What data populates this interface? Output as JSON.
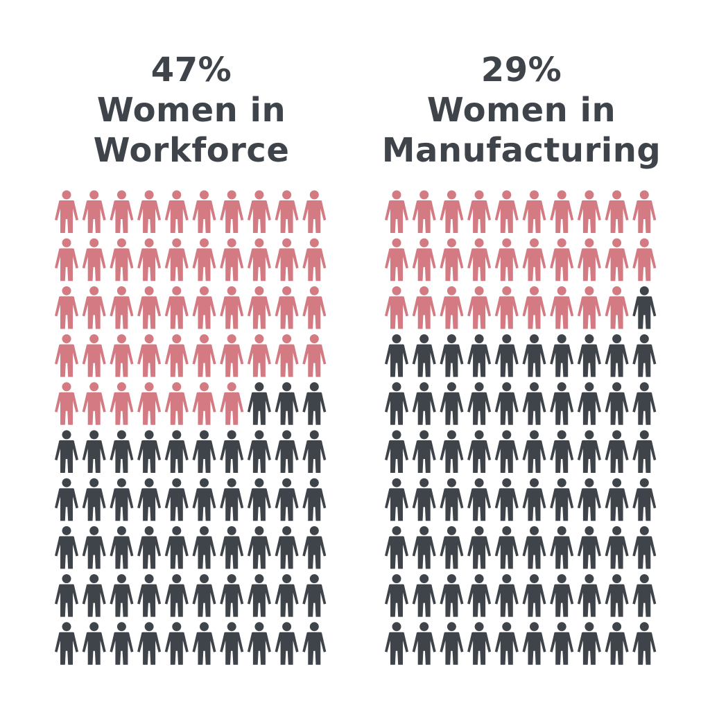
{
  "colors": {
    "highlight": "#d47a82",
    "base": "#3f444b",
    "background": "#ffffff"
  },
  "icon": "person-icon",
  "chart_data": [
    {
      "type": "pictograph",
      "title_lines": [
        "47%",
        "Women in",
        "Workforce"
      ],
      "value_percent": 47,
      "total_icons": 100,
      "highlighted_icons": 47,
      "rows": 10,
      "columns": 10
    },
    {
      "type": "pictograph",
      "title_lines": [
        "29%",
        "Women in",
        "Manufacturing"
      ],
      "value_percent": 29,
      "total_icons": 100,
      "highlighted_icons": 29,
      "rows": 10,
      "columns": 10
    }
  ]
}
